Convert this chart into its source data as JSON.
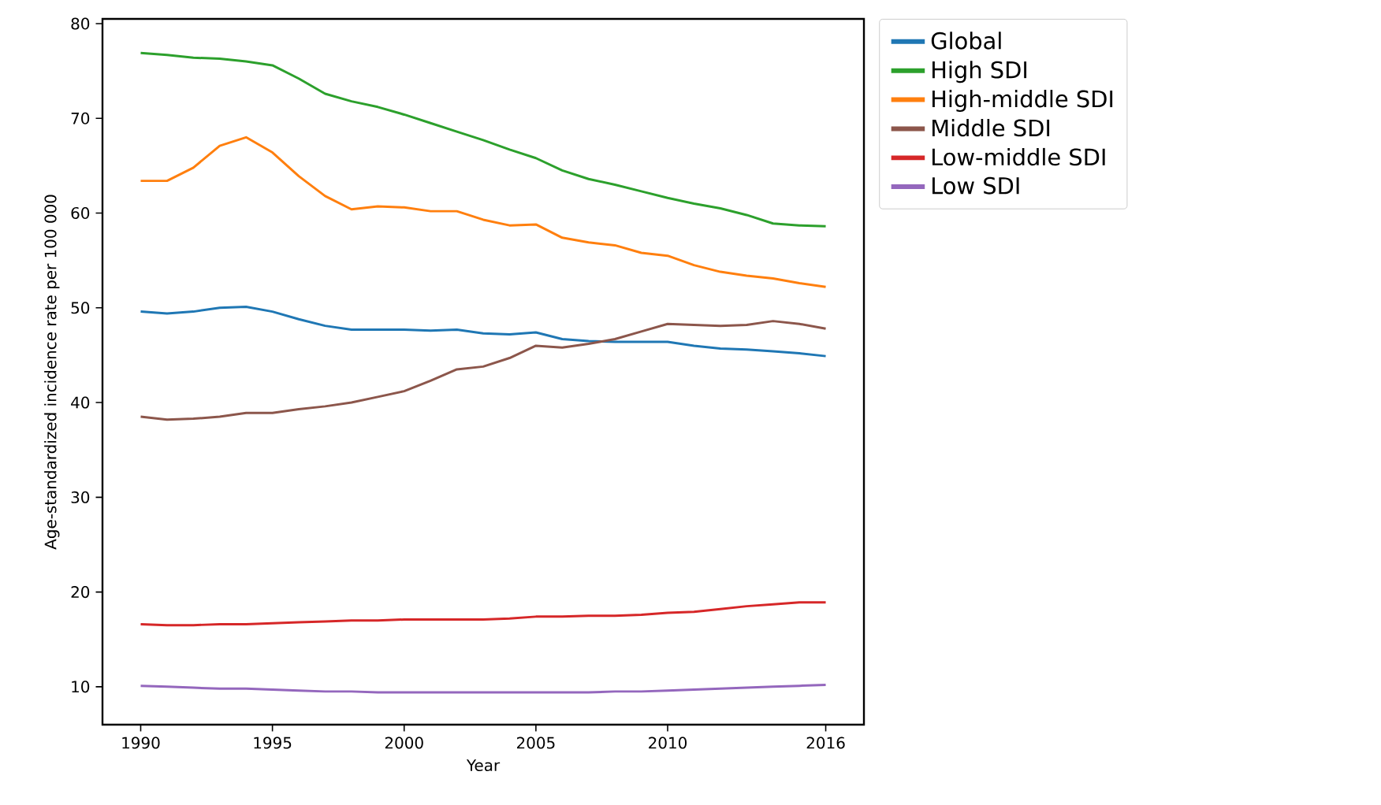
{
  "chart_data": {
    "type": "line",
    "xlabel": "Year",
    "ylabel": "Age-standardized incidence rate per 100 000",
    "x": [
      1990,
      1991,
      1992,
      1993,
      1994,
      1995,
      1996,
      1997,
      1998,
      1999,
      2000,
      2001,
      2002,
      2003,
      2004,
      2005,
      2006,
      2007,
      2008,
      2009,
      2010,
      2011,
      2012,
      2013,
      2014,
      2015,
      2016
    ],
    "series": [
      {
        "name": "Global",
        "color": "#1f77b4",
        "values": [
          49.6,
          49.4,
          49.6,
          50.0,
          50.1,
          49.6,
          48.8,
          48.1,
          47.7,
          47.7,
          47.7,
          47.6,
          47.7,
          47.3,
          47.2,
          47.4,
          46.7,
          46.5,
          46.4,
          46.4,
          46.4,
          46.0,
          45.7,
          45.6,
          45.4,
          45.2,
          44.9
        ]
      },
      {
        "name": "High SDI",
        "color": "#2ca02c",
        "values": [
          76.9,
          76.7,
          76.4,
          76.3,
          76.0,
          75.6,
          74.2,
          72.6,
          71.8,
          71.2,
          70.4,
          69.5,
          68.6,
          67.7,
          66.7,
          65.8,
          64.5,
          63.6,
          63.0,
          62.3,
          61.6,
          61.0,
          60.5,
          59.8,
          58.9,
          58.7,
          58.6
        ]
      },
      {
        "name": "High-middle SDI",
        "color": "#ff7f0e",
        "values": [
          63.4,
          63.4,
          64.8,
          67.1,
          68.0,
          66.4,
          63.9,
          61.8,
          60.4,
          60.7,
          60.6,
          60.2,
          60.2,
          59.3,
          58.7,
          58.8,
          57.4,
          56.9,
          56.6,
          55.8,
          55.5,
          54.5,
          53.8,
          53.4,
          53.1,
          52.6,
          52.2
        ]
      },
      {
        "name": "Middle SDI",
        "color": "#8c564b",
        "values": [
          38.5,
          38.2,
          38.3,
          38.5,
          38.9,
          38.9,
          39.3,
          39.6,
          40.0,
          40.6,
          41.2,
          42.3,
          43.5,
          43.8,
          44.7,
          46.0,
          45.8,
          46.2,
          46.7,
          47.5,
          48.3,
          48.2,
          48.1,
          48.2,
          48.6,
          48.3,
          47.8
        ]
      },
      {
        "name": "Low-middle SDI",
        "color": "#d62728",
        "values": [
          16.6,
          16.5,
          16.5,
          16.6,
          16.6,
          16.7,
          16.8,
          16.9,
          17.0,
          17.0,
          17.1,
          17.1,
          17.1,
          17.1,
          17.2,
          17.4,
          17.4,
          17.5,
          17.5,
          17.6,
          17.8,
          17.9,
          18.2,
          18.5,
          18.7,
          18.9,
          18.9
        ]
      },
      {
        "name": "Low SDI",
        "color": "#9467bd",
        "values": [
          10.1,
          10.0,
          9.9,
          9.8,
          9.8,
          9.7,
          9.6,
          9.5,
          9.5,
          9.4,
          9.4,
          9.4,
          9.4,
          9.4,
          9.4,
          9.4,
          9.4,
          9.4,
          9.5,
          9.5,
          9.6,
          9.7,
          9.8,
          9.9,
          10.0,
          10.1,
          10.2
        ]
      }
    ],
    "xlim": [
      1988.55,
      2017.45
    ],
    "ylim": [
      6,
      80.5
    ],
    "xticks": [
      1990,
      1995,
      2000,
      2005,
      2010,
      2016
    ],
    "yticks": [
      10,
      20,
      30,
      40,
      50,
      60,
      70,
      80
    ],
    "grid": false,
    "legend": "right",
    "marker": "none",
    "line_style": "solid"
  }
}
